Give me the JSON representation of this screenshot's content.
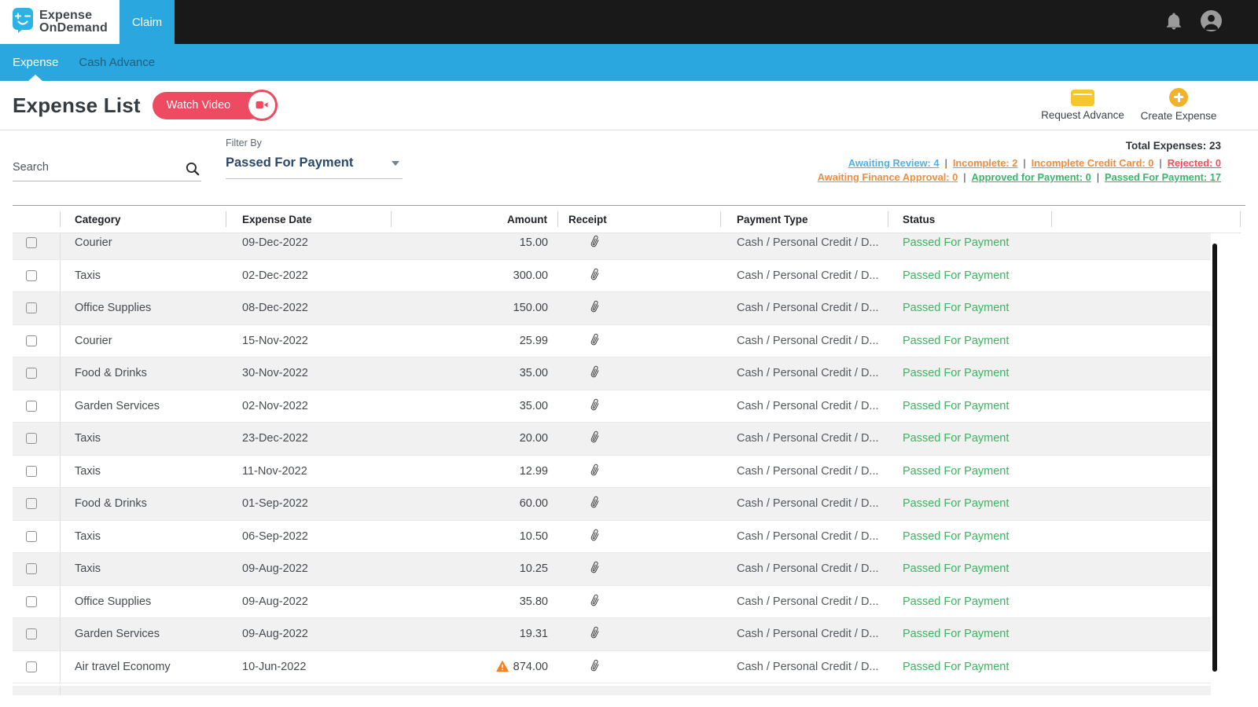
{
  "brand": {
    "name_line1": "Expense",
    "name_line2": "OnDemand"
  },
  "topbar": {
    "claim_tab": "Claim"
  },
  "subnav": {
    "items": [
      {
        "label": "Expense",
        "active": true
      },
      {
        "label": "Cash Advance",
        "active": false
      }
    ]
  },
  "page_header": {
    "title": "Expense List",
    "watch_video_label": "Watch Video",
    "actions": [
      {
        "label": "Request Advance",
        "icon": "wallet-icon"
      },
      {
        "label": "Create Expense",
        "icon": "plus-circle-icon"
      }
    ]
  },
  "toolbar": {
    "search_placeholder": "Search",
    "filter_label": "Filter By",
    "filter_value": "Passed For Payment",
    "total_label": "Total Expenses: 23",
    "summary_links_row1": [
      {
        "label": "Awaiting Review: 4",
        "color": "#4db3e6"
      },
      {
        "label": "Incomplete: 2",
        "color": "#ef8b41"
      },
      {
        "label": "Incomplete Credit Card: 0",
        "color": "#ef8b41"
      },
      {
        "label": "Rejected: 0",
        "color": "#fb4b57"
      }
    ],
    "summary_links_row2": [
      {
        "label": "Awaiting Finance Approval: 0",
        "color": "#ef8b41"
      },
      {
        "label": "Approved for Payment: 0",
        "color": "#3cb46a"
      },
      {
        "label": "Passed For Payment: 17",
        "color": "#3cb46a"
      }
    ]
  },
  "icons": {
    "logo": "document-smiley",
    "bell": "bell",
    "account": "person-circle",
    "search": "magnifier",
    "watch_video": "video-camera",
    "receipt": "paperclip",
    "amount_warning": "warning-triangle",
    "filter": "chevron-down"
  },
  "colors": {
    "brand_blue": "#2aa7df",
    "topbar_black": "#191919",
    "pink": "#ee4a62",
    "yellow": "#f6c62d",
    "status_green": "#3cb45f",
    "warning_orange": "#f58220"
  },
  "table": {
    "columns": [
      "Category",
      "Expense Date",
      "Amount",
      "Receipt",
      "Payment Type",
      "Status"
    ],
    "status_color": "#3cb45f",
    "rows": [
      {
        "category": "Courier",
        "date": "09-Dec-2022",
        "amount": "15.00",
        "warning": false,
        "payment": "Cash / Personal Credit / D...",
        "status": "Passed For Payment"
      },
      {
        "category": "Taxis",
        "date": "02-Dec-2022",
        "amount": "300.00",
        "warning": false,
        "payment": "Cash / Personal Credit / D...",
        "status": "Passed For Payment"
      },
      {
        "category": "Office Supplies",
        "date": "08-Dec-2022",
        "amount": "150.00",
        "warning": false,
        "payment": "Cash / Personal Credit / D...",
        "status": "Passed For Payment"
      },
      {
        "category": "Courier",
        "date": "15-Nov-2022",
        "amount": "25.99",
        "warning": false,
        "payment": "Cash / Personal Credit / D...",
        "status": "Passed For Payment"
      },
      {
        "category": "Food & Drinks",
        "date": "30-Nov-2022",
        "amount": "35.00",
        "warning": false,
        "payment": "Cash / Personal Credit / D...",
        "status": "Passed For Payment"
      },
      {
        "category": "Garden Services",
        "date": "02-Nov-2022",
        "amount": "35.00",
        "warning": false,
        "payment": "Cash / Personal Credit / D...",
        "status": "Passed For Payment"
      },
      {
        "category": "Taxis",
        "date": "23-Dec-2022",
        "amount": "20.00",
        "warning": false,
        "payment": "Cash / Personal Credit / D...",
        "status": "Passed For Payment"
      },
      {
        "category": "Taxis",
        "date": "11-Nov-2022",
        "amount": "12.99",
        "warning": false,
        "payment": "Cash / Personal Credit / D...",
        "status": "Passed For Payment"
      },
      {
        "category": "Food & Drinks",
        "date": "01-Sep-2022",
        "amount": "60.00",
        "warning": false,
        "payment": "Cash / Personal Credit / D...",
        "status": "Passed For Payment"
      },
      {
        "category": "Taxis",
        "date": "06-Sep-2022",
        "amount": "10.50",
        "warning": false,
        "payment": "Cash / Personal Credit / D...",
        "status": "Passed For Payment"
      },
      {
        "category": "Taxis",
        "date": "09-Aug-2022",
        "amount": "10.25",
        "warning": false,
        "payment": "Cash / Personal Credit / D...",
        "status": "Passed For Payment"
      },
      {
        "category": "Office Supplies",
        "date": "09-Aug-2022",
        "amount": "35.80",
        "warning": false,
        "payment": "Cash / Personal Credit / D...",
        "status": "Passed For Payment"
      },
      {
        "category": "Garden Services",
        "date": "09-Aug-2022",
        "amount": "19.31",
        "warning": false,
        "payment": "Cash / Personal Credit / D...",
        "status": "Passed For Payment"
      },
      {
        "category": "Air travel Economy",
        "date": "10-Jun-2022",
        "amount": "874.00",
        "warning": true,
        "payment": "Cash / Personal Credit / D...",
        "status": "Passed For Payment"
      }
    ]
  }
}
